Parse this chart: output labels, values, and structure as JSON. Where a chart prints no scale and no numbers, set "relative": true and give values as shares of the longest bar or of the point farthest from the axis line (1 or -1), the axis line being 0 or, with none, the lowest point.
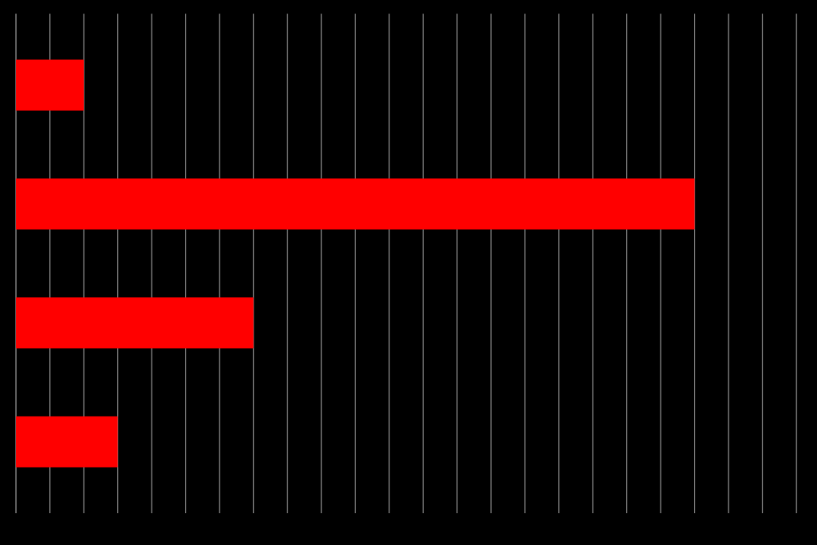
{
  "chart_data": {
    "type": "bar",
    "orientation": "horizontal",
    "relative": true,
    "categories": [
      null,
      null,
      null,
      null
    ],
    "values": [
      0.1,
      1,
      0.35,
      0.15
    ],
    "color": "#ff0000",
    "grid": "x"
  }
}
